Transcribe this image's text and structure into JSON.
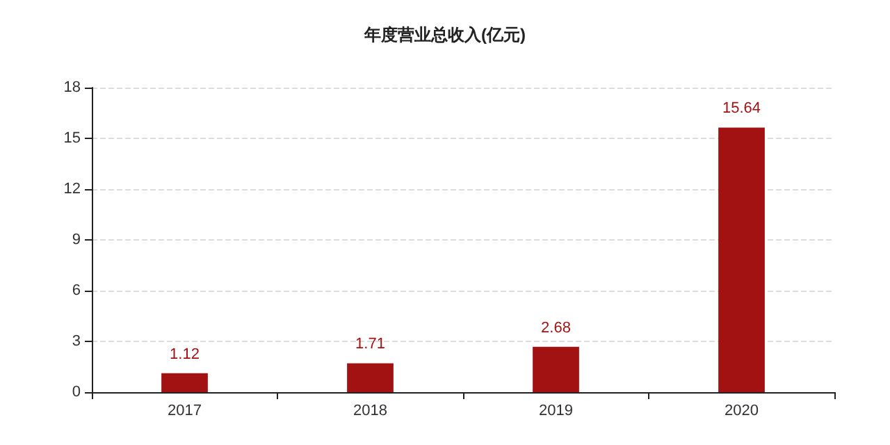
{
  "chart_data": {
    "type": "bar",
    "title": "年度营业总收入(亿元)",
    "categories": [
      "2017",
      "2018",
      "2019",
      "2020"
    ],
    "values": [
      1.12,
      1.71,
      2.68,
      15.64
    ],
    "color": "#a31212",
    "ylim": [
      0,
      18
    ],
    "yticks": [
      0,
      3,
      6,
      9,
      12,
      15,
      18
    ],
    "grid": "y",
    "data_labels": true
  }
}
